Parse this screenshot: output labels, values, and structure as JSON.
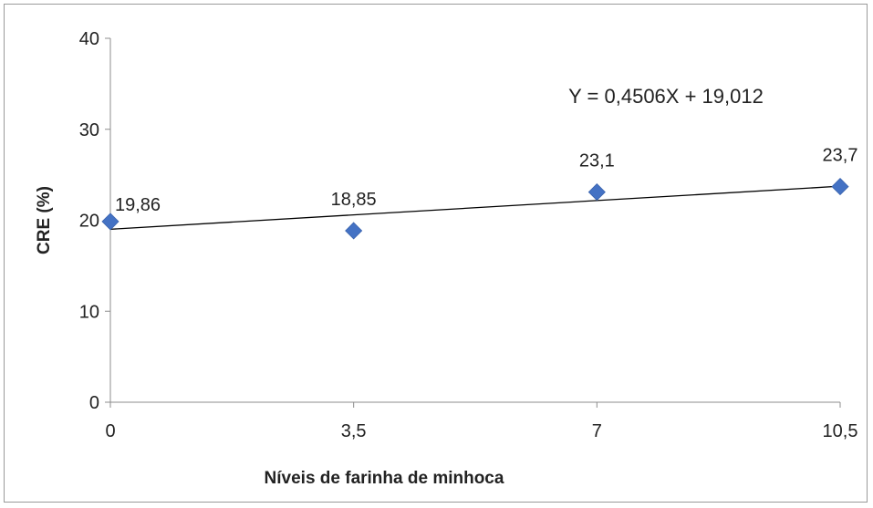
{
  "chart_data": {
    "type": "scatter",
    "title": "",
    "xlabel": "Níveis de farinha de minhoca",
    "ylabel": "CRE (%)",
    "x": [
      0,
      3.5,
      7,
      10.5
    ],
    "x_tick_labels": [
      "0",
      "3,5",
      "7",
      "10,5"
    ],
    "y_tick_labels": [
      "0",
      "10",
      "20",
      "30",
      "40"
    ],
    "ylim": [
      0,
      40
    ],
    "xlim": [
      0,
      10.5
    ],
    "series": [
      {
        "values": [
          19.86,
          18.85,
          23.1,
          23.7
        ],
        "data_labels": [
          "19,86",
          "18,85",
          "23,1",
          "23,7"
        ],
        "marker": "diamond",
        "color": "#4472c4"
      }
    ],
    "trendline": {
      "type": "linear",
      "slope": 0.4506,
      "intercept": 19.012,
      "equation": "Y = 0,4506X + 19,012",
      "color": "#000000"
    },
    "grid": false,
    "legend": "none"
  }
}
